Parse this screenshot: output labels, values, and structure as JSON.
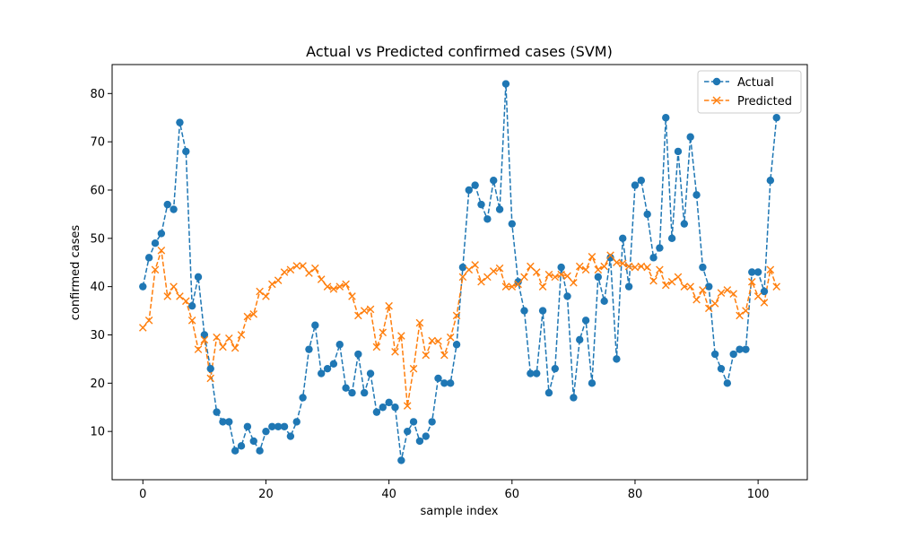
{
  "chart_data": {
    "type": "line",
    "title": "Actual vs Predicted confirmed cases (SVM)",
    "xlabel": "sample index",
    "ylabel": "confirmed cases",
    "xlim": [
      -5,
      108
    ],
    "ylim": [
      0,
      86
    ],
    "xticks": [
      0,
      20,
      40,
      60,
      80,
      100
    ],
    "yticks": [
      10,
      20,
      30,
      40,
      50,
      60,
      70,
      80
    ],
    "grid": false,
    "legend_position": "top-right",
    "series": [
      {
        "name": "Actual",
        "color": "#1f77b4",
        "marker": "circle",
        "linestyle": "dashed",
        "values": [
          40,
          46,
          49,
          51,
          57,
          56,
          74,
          68,
          36,
          42,
          30,
          23,
          14,
          12,
          12,
          6,
          7,
          11,
          8,
          6,
          10,
          11,
          11,
          11,
          9,
          12,
          17,
          27,
          32,
          22,
          23,
          24,
          28,
          19,
          18,
          26,
          18,
          22,
          14,
          15,
          16,
          15,
          4,
          10,
          12,
          8,
          9,
          12,
          21,
          20,
          20,
          28,
          44,
          60,
          61,
          57,
          54,
          62,
          56,
          82,
          53,
          41,
          35,
          22,
          22,
          35,
          18,
          23,
          44,
          38,
          17,
          29,
          33,
          20,
          42,
          37,
          46,
          25,
          50,
          40,
          61,
          62,
          55,
          46,
          48,
          75,
          50,
          68,
          53,
          71,
          59,
          44,
          40,
          26,
          23,
          20,
          26,
          27,
          27,
          43,
          43,
          39,
          62,
          75
        ]
      },
      {
        "name": "Predicted",
        "color": "#ff7f0e",
        "marker": "x",
        "linestyle": "dashed",
        "values": [
          31.5,
          33,
          43.5,
          47.5,
          38,
          40,
          38,
          37,
          33,
          27,
          29,
          21,
          29.5,
          27.5,
          29.3,
          27.3,
          30,
          33.8,
          34.3,
          39,
          38,
          40.5,
          41.3,
          43,
          43.5,
          44.3,
          44.3,
          42.8,
          43.8,
          41.5,
          40,
          39.5,
          40,
          40.5,
          38,
          34,
          35,
          35.3,
          27.5,
          30.5,
          36,
          26.5,
          29.8,
          15.3,
          23,
          32.5,
          25.8,
          28.8,
          28.7,
          25.8,
          29.5,
          34,
          42,
          43.5,
          44.5,
          41,
          42,
          43.2,
          43.8,
          40,
          40,
          40.5,
          42,
          44.2,
          43,
          40,
          42.5,
          42,
          42.5,
          42.2,
          40.8,
          44.2,
          43.5,
          46.2,
          43.5,
          44.2,
          46.5,
          45,
          44.8,
          44.2,
          44,
          44.2,
          44,
          41.2,
          43.5,
          40.3,
          41,
          42,
          40,
          40,
          37.3,
          39.3,
          35.5,
          36.5,
          38.7,
          39.3,
          38.5,
          34,
          35,
          41,
          38,
          36.7,
          43.5,
          40
        ]
      }
    ]
  }
}
